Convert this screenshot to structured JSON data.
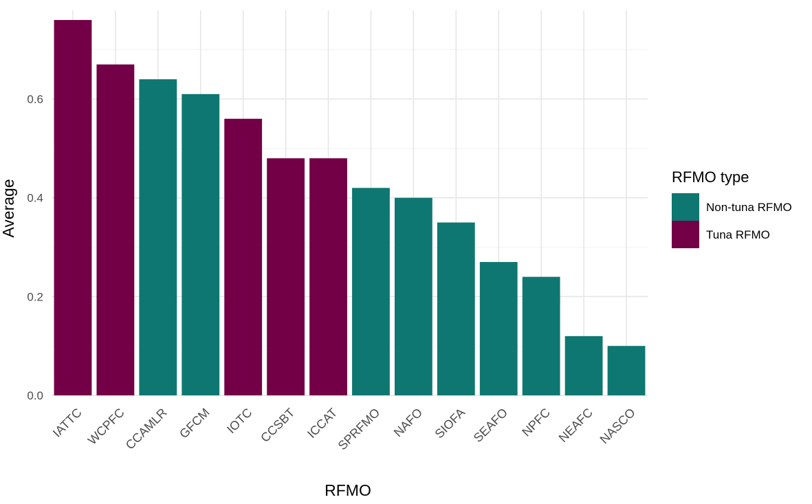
{
  "chart_data": {
    "type": "bar",
    "categories": [
      "IATTC",
      "WCPFC",
      "CCAMLR",
      "GFCM",
      "IOTC",
      "CCSBT",
      "ICCAT",
      "SPRFMO",
      "NAFO",
      "SIOFA",
      "SEAFO",
      "NPFC",
      "NEAFC",
      "NASCO"
    ],
    "values": [
      0.76,
      0.67,
      0.64,
      0.61,
      0.56,
      0.48,
      0.48,
      0.42,
      0.4,
      0.35,
      0.27,
      0.24,
      0.12,
      0.1
    ],
    "groups": [
      "Tuna RFMO",
      "Tuna RFMO",
      "Non-tuna RFMO",
      "Non-tuna RFMO",
      "Tuna RFMO",
      "Tuna RFMO",
      "Tuna RFMO",
      "Non-tuna RFMO",
      "Non-tuna RFMO",
      "Non-tuna RFMO",
      "Non-tuna RFMO",
      "Non-tuna RFMO",
      "Non-tuna RFMO",
      "Non-tuna RFMO"
    ],
    "xlabel": "RFMO",
    "ylabel": "Average",
    "ylim": [
      0,
      0.76
    ],
    "yticks": [
      "0.0",
      "0.2",
      "0.4",
      "0.6"
    ],
    "legend": {
      "title": "RFMO type",
      "placement": "right",
      "entries": [
        {
          "name": "Non-tuna RFMO",
          "color": "#0e7771"
        },
        {
          "name": "Tuna RFMO",
          "color": "#730046"
        }
      ]
    },
    "grid": true
  }
}
